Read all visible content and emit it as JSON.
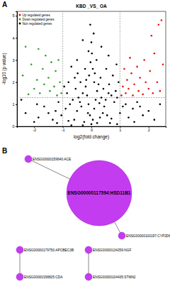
{
  "chart_data": {
    "type": "scatter",
    "title": "KBD _VS_ OA",
    "annotations": [
      "A"
    ],
    "x_label": "log2(fold change)",
    "y_label": "-log10 (p value)",
    "xlim": [
      -2.6,
      2.6
    ],
    "xticks": [
      -2,
      -1,
      0,
      1,
      2
    ],
    "ylim": [
      0,
      5.2
    ],
    "yticks": [
      0,
      1,
      2,
      3,
      4,
      5
    ],
    "hlines": [
      1.3
    ],
    "vlines": [
      -1,
      1
    ],
    "legend": "top-left",
    "marker": "circle",
    "series": [
      {
        "name": "Up regulated genes",
        "color": "#e8120c",
        "x": [
          1.05,
          1.1,
          1.2,
          1.25,
          1.3,
          1.4,
          1.45,
          1.5,
          1.6,
          1.65,
          1.7,
          1.8,
          1.85,
          1.9,
          2.0,
          2.05,
          2.15,
          2.2,
          2.3,
          2.4,
          2.5,
          1.35,
          1.15,
          2.35,
          2.45,
          2.1
        ],
        "values": [
          1.4,
          1.8,
          1.5,
          2.1,
          1.7,
          2.4,
          1.4,
          1.9,
          2.7,
          1.6,
          2.2,
          1.45,
          3.0,
          2.0,
          1.7,
          2.5,
          1.5,
          3.3,
          2.0,
          1.6,
          2.8,
          3.1,
          2.6,
          4.6,
          4.8,
          4.1
        ]
      },
      {
        "name": "Down regulated genes",
        "color": "#2ca02c",
        "x": [
          -1.05,
          -1.1,
          -1.2,
          -1.25,
          -1.3,
          -1.4,
          -1.45,
          -1.5,
          -1.6,
          -1.65,
          -1.7,
          -1.8,
          -1.85,
          -1.9,
          -2.0,
          -2.1,
          -2.2,
          -2.3,
          -2.4,
          -1.15
        ],
        "values": [
          1.5,
          2.0,
          1.4,
          2.5,
          1.8,
          2.9,
          1.6,
          2.2,
          3.2,
          1.9,
          2.6,
          1.5,
          3.5,
          2.1,
          1.7,
          2.8,
          1.45,
          3.6,
          2.3,
          3.0
        ]
      },
      {
        "name": "Non regulated genes",
        "color": "#000000",
        "x": [
          0,
          0.05,
          -0.05,
          0.1,
          -0.1,
          0.15,
          -0.15,
          0.2,
          -0.2,
          0.1,
          -0.08,
          0.05,
          -0.03,
          0.02,
          0,
          0.12,
          -0.18,
          0.25,
          -0.3,
          0.35,
          -0.4,
          0.45,
          -0.5,
          0.55,
          -0.6,
          0.65,
          -0.7,
          0.3,
          -0.25,
          0.4,
          -0.35,
          0.5,
          -0.45,
          0.6,
          -0.55,
          0.7,
          -0.65,
          0.8,
          -0.75,
          0.85,
          -0.85,
          0.9,
          -0.95,
          0.95,
          -0.9,
          1.0,
          -1.05,
          1.1,
          -1.15,
          1.2,
          -1.25,
          1.3,
          -1.35,
          1.45,
          -1.5,
          1.6,
          -1.65,
          1.8,
          -1.85,
          2.0,
          -2.0,
          2.2,
          -2.3,
          0.2,
          -0.12,
          0.28,
          -0.22,
          0.18,
          -0.1,
          0.32,
          -0.38,
          0.42,
          -0.48,
          0.52,
          -0.58,
          0.62,
          -0.7,
          0.75,
          -0.8,
          0.88,
          0.08,
          -0.04,
          0.7,
          -0.8,
          1.5,
          -1.2,
          0.9,
          -0.3,
          1.7,
          -1.9,
          2.4,
          -2.45,
          0.6,
          -0.5,
          0.35,
          -0.3
        ],
        "values": [
          0.1,
          0.3,
          0.5,
          0.8,
          1.0,
          1.2,
          1.4,
          1.6,
          1.8,
          2.0,
          2.3,
          2.6,
          2.9,
          3.3,
          3.8,
          2.4,
          2.1,
          1.9,
          1.5,
          1.3,
          1.1,
          0.9,
          0.7,
          0.5,
          0.3,
          0.15,
          0.05,
          0.4,
          0.2,
          0.6,
          0.9,
          1.2,
          1.3,
          1.5,
          1.7,
          1.4,
          1.2,
          1.1,
          1.0,
          1.6,
          1.5,
          1.3,
          1.8,
          2.0,
          0.8,
          0.6,
          0.5,
          0.9,
          1.1,
          1.0,
          0.7,
          0.4,
          0.3,
          0.8,
          0.6,
          1.1,
          0.9,
          0.5,
          0.4,
          0.7,
          0.2,
          0.3,
          0.6,
          0.15,
          0.6,
          1.05,
          2.6,
          3.0,
          3.4,
          2.2,
          2.0,
          1.7,
          2.4,
          2.6,
          2.2,
          1.9,
          2.7,
          2.3,
          2.0,
          2.8,
          4.2,
          4.6,
          0.35,
          0.25,
          0.2,
          0.15,
          0.1,
          0.05,
          0.9,
          1.0,
          1.0,
          1.2,
          3.2,
          3.0,
          3.6,
          3.9
        ]
      }
    ]
  },
  "network": {
    "label": "B",
    "nodes": [
      {
        "label": "ENSG00000117594:HSD11B1"
      },
      {
        "label": "ENSG00000159640:ACE"
      },
      {
        "label": "ENSG00000100197:CYP2D6"
      },
      {
        "label": "ENSG00000179750:APOBEC3B"
      },
      {
        "label": "ENSG00000158825:CDA"
      },
      {
        "label": "ENSG00000134259:NGF"
      },
      {
        "label": "ENSG00000104435:STMN2"
      }
    ],
    "edges": [
      [
        0,
        1
      ],
      [
        0,
        2
      ],
      [
        3,
        4
      ],
      [
        5,
        6
      ]
    ]
  }
}
